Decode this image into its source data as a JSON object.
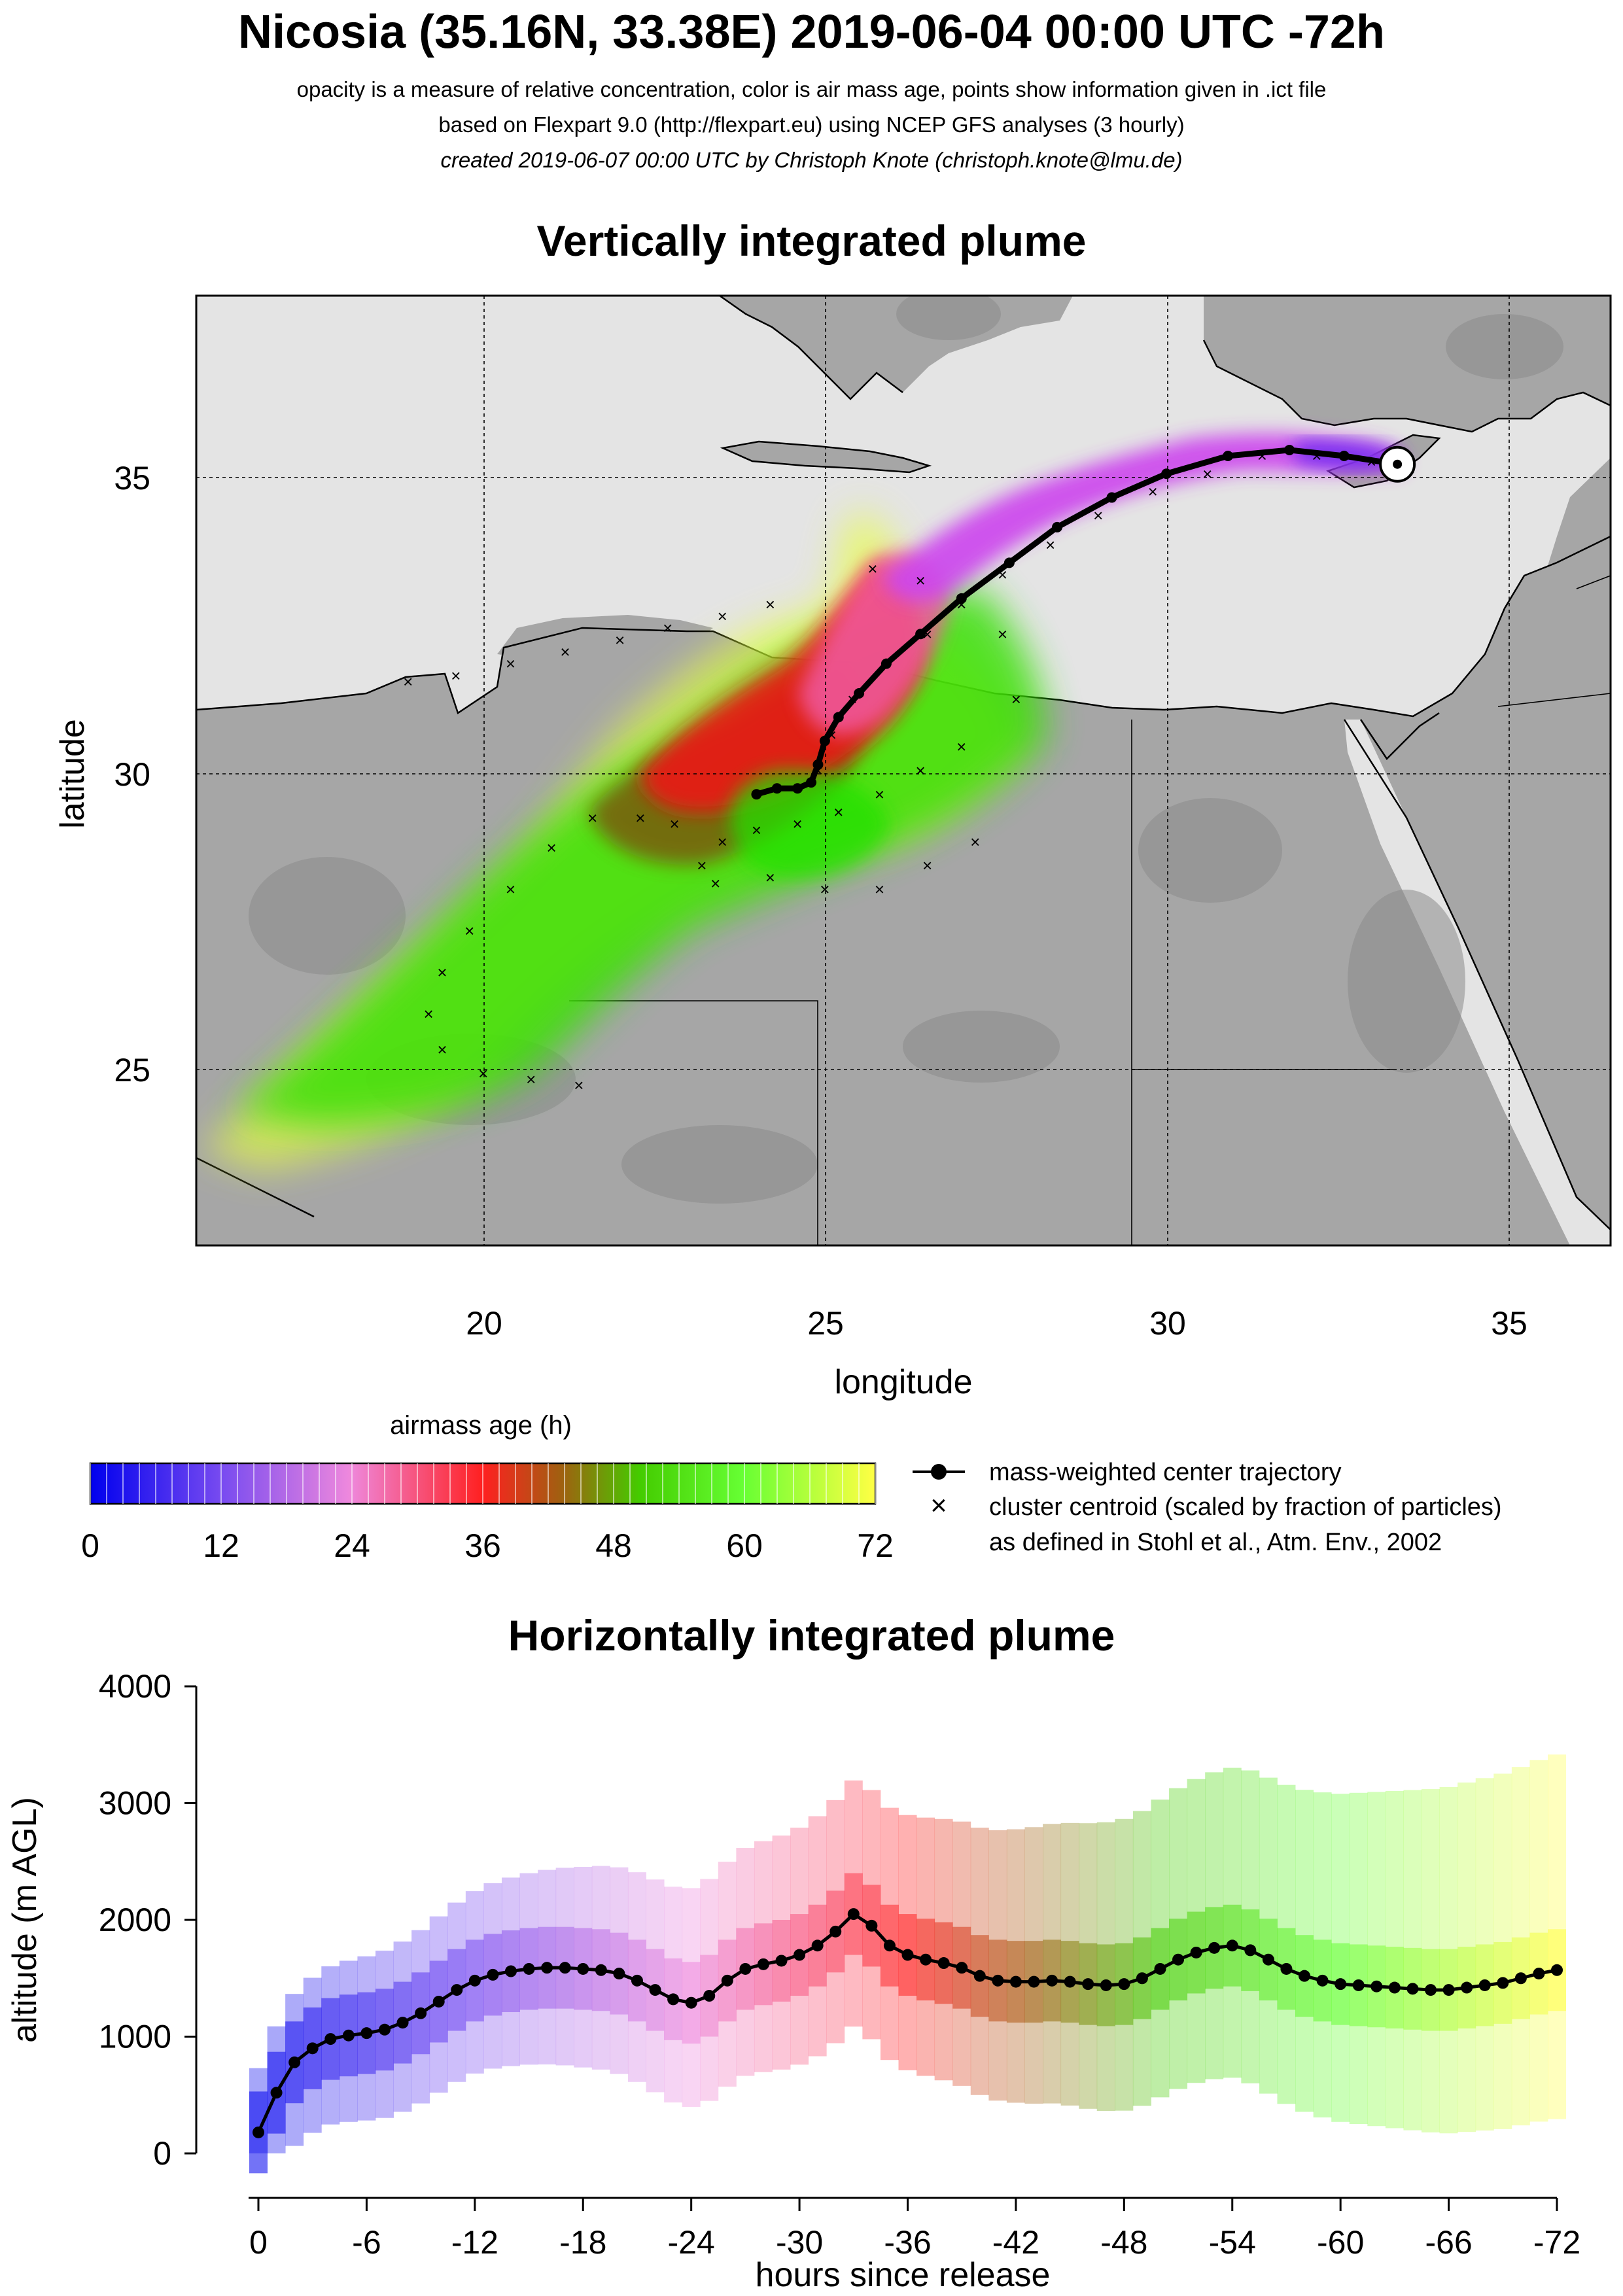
{
  "header": {
    "title": "Nicosia (35.16N, 33.38E) 2019-06-04 00:00 UTC -72h",
    "subtitle_1": "opacity is a measure of relative concentration, color is air mass age, points show information given in .ict file",
    "subtitle_2": "based on Flexpart 9.0 (http://flexpart.eu) using NCEP GFS analyses (3 hourly)",
    "subtitle_3": "created 2019-06-07 00:00 UTC by Christoph Knote (christoph.knote@lmu.de)"
  },
  "colors": {
    "land": "#a6a6a6",
    "sea": "#e4e4e4",
    "age_0": "#0000ee",
    "age_24": "#ee55cc",
    "age_36": "#ff2020",
    "age_48": "#55aa00",
    "age_60": "#22ee00",
    "age_72": "#ffff33"
  },
  "chart_data": [
    {
      "type": "scatter",
      "title": "Vertically integrated plume",
      "xlabel": "longitude",
      "ylabel": "latitude",
      "xlim": [
        15.8,
        36.5
      ],
      "ylim": [
        22,
        38
      ],
      "xticks": [
        20,
        25,
        30,
        35
      ],
      "yticks": [
        25,
        30,
        35
      ],
      "grid": true,
      "release_site": {
        "lon": 33.38,
        "lat": 35.16
      },
      "center_trajectory": {
        "lon": [
          33.38,
          32.6,
          31.8,
          30.9,
          30.0,
          29.2,
          28.4,
          27.7,
          27.0,
          26.4,
          25.9,
          25.5,
          25.2,
          25.0,
          24.9,
          24.8,
          24.6,
          24.3,
          24.0
        ],
        "lat": [
          35.16,
          35.3,
          35.4,
          35.3,
          35.0,
          34.6,
          34.1,
          33.5,
          32.9,
          32.3,
          31.8,
          31.3,
          30.9,
          30.5,
          30.1,
          29.8,
          29.7,
          29.7,
          29.6
        ]
      },
      "cluster_centroids": {
        "lon": [
          33.0,
          32.2,
          31.4,
          30.6,
          29.8,
          29.0,
          28.3,
          27.6,
          27.0,
          26.5,
          25.9,
          25.4,
          25.1,
          24.9,
          25.7,
          26.4,
          27.0,
          27.6,
          27.8,
          27.0,
          26.4,
          25.8,
          25.2,
          24.6,
          24.0,
          23.5,
          23.2,
          23.4,
          24.2,
          25.0,
          25.8,
          26.5,
          27.2,
          22.8,
          22.3,
          21.6,
          21.0,
          20.4,
          19.8,
          19.4,
          19.2,
          19.4,
          20.0,
          20.7,
          21.4,
          24.2,
          23.5,
          22.7,
          22.0,
          21.2,
          20.4,
          19.6,
          18.9
        ],
        "lat": [
          35.2,
          35.3,
          35.3,
          35.0,
          34.7,
          34.3,
          33.8,
          33.3,
          32.8,
          32.3,
          31.8,
          31.2,
          30.6,
          30.0,
          33.4,
          33.2,
          32.8,
          32.3,
          31.2,
          30.4,
          30.0,
          29.6,
          29.3,
          29.1,
          29.0,
          28.8,
          28.4,
          28.1,
          28.2,
          28.0,
          28.0,
          28.4,
          28.8,
          29.1,
          29.2,
          29.2,
          28.7,
          28.0,
          27.3,
          26.6,
          25.9,
          25.3,
          24.9,
          24.8,
          24.7,
          32.8,
          32.6,
          32.4,
          32.2,
          32.0,
          31.8,
          31.6,
          31.5
        ]
      }
    },
    {
      "type": "line",
      "title": "Horizontally integrated plume",
      "xlabel": "hours since release",
      "ylabel": "altitude (m AGL)",
      "xlim": [
        1,
        -73
      ],
      "ylim": [
        0,
        4000
      ],
      "xticks": [
        0,
        -6,
        -12,
        -18,
        -24,
        -30,
        -36,
        -42,
        -48,
        -54,
        -60,
        -66,
        -72
      ],
      "xtick_labels": [
        "0",
        "-6",
        "-12",
        "-18",
        "-24",
        "-30",
        "-36",
        "-42",
        "-48",
        "-54",
        "-60",
        "-66",
        "-72"
      ],
      "yticks": [
        0,
        1000,
        2000,
        3000,
        4000
      ],
      "series": [
        {
          "name": "mass-weighted center trajectory",
          "x": [
            0,
            -1,
            -2,
            -3,
            -4,
            -5,
            -6,
            -7,
            -8,
            -9,
            -10,
            -11,
            -12,
            -13,
            -14,
            -15,
            -16,
            -17,
            -18,
            -19,
            -20,
            -21,
            -22,
            -23,
            -24,
            -25,
            -26,
            -27,
            -28,
            -29,
            -30,
            -31,
            -32,
            -33,
            -34,
            -35,
            -36,
            -37,
            -38,
            -39,
            -40,
            -41,
            -42,
            -43,
            -44,
            -45,
            -46,
            -47,
            -48,
            -49,
            -50,
            -51,
            -52,
            -53,
            -54,
            -55,
            -56,
            -57,
            -58,
            -59,
            -60,
            -61,
            -62,
            -63,
            -64,
            -65,
            -66,
            -67,
            -68,
            -69,
            -70,
            -71,
            -72
          ],
          "y": [
            180,
            520,
            780,
            900,
            980,
            1010,
            1030,
            1060,
            1120,
            1200,
            1300,
            1400,
            1480,
            1530,
            1560,
            1580,
            1590,
            1590,
            1580,
            1570,
            1540,
            1480,
            1400,
            1320,
            1290,
            1350,
            1480,
            1580,
            1620,
            1650,
            1700,
            1780,
            1900,
            2050,
            1950,
            1780,
            1700,
            1660,
            1630,
            1590,
            1520,
            1480,
            1470,
            1470,
            1480,
            1470,
            1450,
            1440,
            1450,
            1500,
            1580,
            1660,
            1720,
            1760,
            1780,
            1740,
            1660,
            1580,
            1520,
            1480,
            1450,
            1440,
            1430,
            1420,
            1410,
            1400,
            1400,
            1420,
            1440,
            1460,
            1500,
            1540,
            1570
          ]
        }
      ]
    }
  ],
  "legend": {
    "age_label": "airmass age (h)",
    "age_ticks": [
      "0",
      "12",
      "24",
      "36",
      "48",
      "60",
      "72"
    ],
    "traj_label": "mass-weighted center trajectory",
    "cluster_label": "cluster centroid (scaled by fraction of particles)",
    "cluster_label_2": "as defined in Stohl et al., Atm. Env., 2002"
  }
}
